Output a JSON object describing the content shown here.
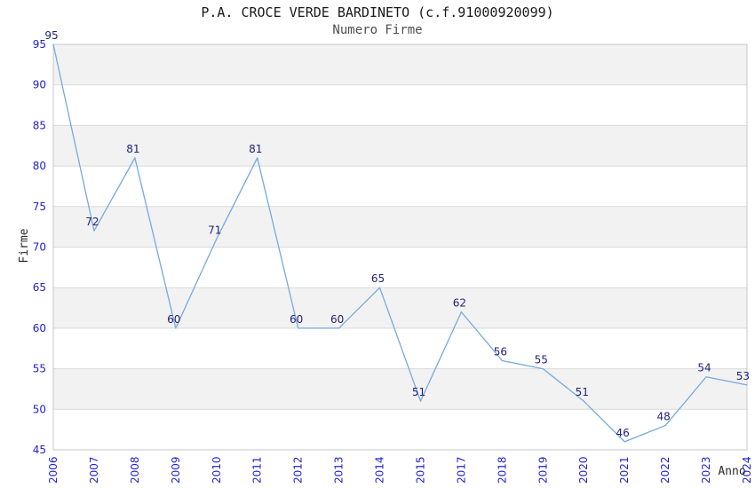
{
  "chart_data": {
    "type": "line",
    "title": "P.A. CROCE VERDE BARDINETO (c.f.91000920099)",
    "subtitle": "Numero Firme",
    "xlabel": "Anno",
    "ylabel": "Firme",
    "categories": [
      "2006",
      "2007",
      "2008",
      "2009",
      "2010",
      "2011",
      "2012",
      "2013",
      "2014",
      "2015",
      "2017",
      "2018",
      "2019",
      "2020",
      "2021",
      "2022",
      "2023",
      "2024"
    ],
    "values": [
      95,
      72,
      81,
      60,
      71,
      81,
      60,
      60,
      65,
      51,
      62,
      56,
      55,
      51,
      46,
      48,
      54,
      53
    ],
    "ylim": [
      45,
      95
    ],
    "ytick_step": 5,
    "yticks": [
      45,
      50,
      55,
      60,
      65,
      70,
      75,
      80,
      85,
      90,
      95
    ],
    "grid": "horizontal gridlines every 5 units with alternating gray bands",
    "legend": null,
    "data_labels_shown": true,
    "x_tick_rotation_deg": -90,
    "colors": {
      "line": "#74aadf",
      "band": "#f2f2f2",
      "gridline": "#d9d9d9",
      "plot_border": "#c8c8c8",
      "tick_label": "#2222cc",
      "value_label": "#222277",
      "title": "#1a1a1a",
      "subtitle": "#4f4f4f",
      "axis_title": "#2b2b2b",
      "background": "#ffffff"
    }
  }
}
